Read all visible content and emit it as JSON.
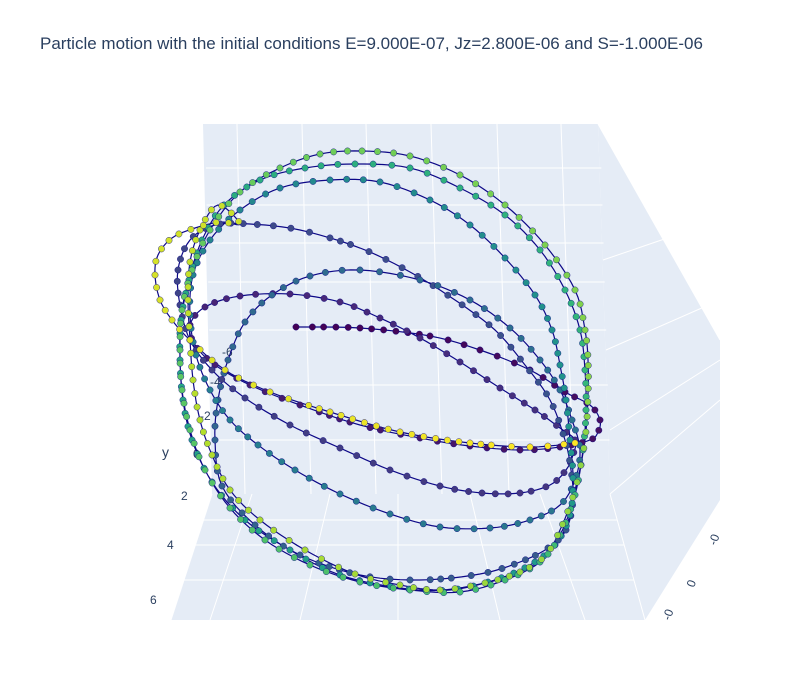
{
  "chart_data": {
    "type": "scatter3d",
    "title": "Particle motion with the initial conditions E=9.000E-07, Jz=2.800E-06 and S=-1.000E-06",
    "mode": "lines+markers",
    "line_color": "#0d0887",
    "colorscale": "Viridis",
    "colors": {
      "plane_fill": "#e5ecf6",
      "grid": "#ffffff",
      "text": "#2a3f5f"
    },
    "axes": {
      "y": {
        "title": "y",
        "ticks": [
          "-6",
          "-4",
          "-2",
          "0",
          "2",
          "4",
          "6"
        ]
      },
      "z": {
        "ticks": [
          "-0",
          "0",
          "-0"
        ]
      }
    }
  }
}
